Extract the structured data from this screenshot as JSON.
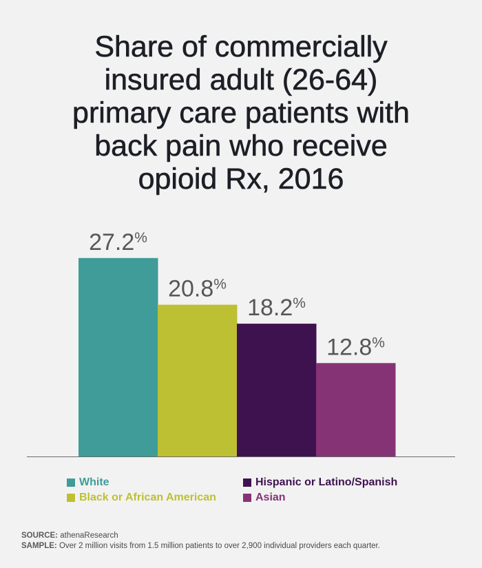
{
  "chart_data": {
    "type": "bar",
    "title": [
      "Share of commercially",
      "insured adult (26-64)",
      "primary care patients with",
      "back pain who receive",
      "opioid Rx, 2016"
    ],
    "categories": [
      "White",
      "Black or African American",
      "Hispanic or Latino/Spanish",
      "Asian"
    ],
    "values": [
      27.2,
      20.8,
      18.2,
      12.8
    ],
    "value_labels": [
      "27.2",
      "20.8",
      "18.2",
      "12.8"
    ],
    "value_suffix": "%",
    "colors": [
      "#3f9c98",
      "#bdc033",
      "#3e124f",
      "#863375"
    ],
    "ylim": [
      0,
      28.5
    ],
    "grid": false,
    "legend_position": "bottom"
  },
  "footer": {
    "source_key": "SOURCE:",
    "source_value": "athenaResearch",
    "sample_key": "SAMPLE:",
    "sample_value": "Over 2 million visits from 1.5 million patients to over 2,900 individual providers each quarter."
  }
}
